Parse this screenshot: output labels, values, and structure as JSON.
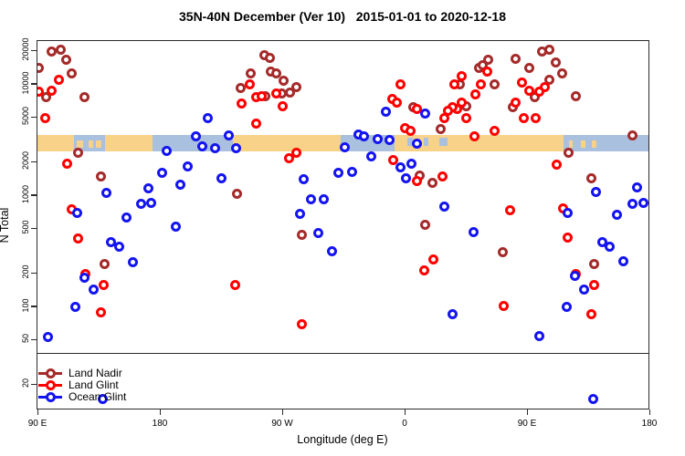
{
  "title": "35N-40N December (Ver 10)   2015-01-01 to 2020-12-18",
  "colors": {
    "land_nadir": "#A52A2A",
    "land_glint": "#FF0000",
    "ocean_glint": "#1414F0",
    "axis": "#2b2b2b",
    "band_ocean": "#A9C0DE",
    "band_land": "#F8D288"
  },
  "legend": {
    "items": [
      {
        "label": "Land Nadir",
        "series": "land_nadir"
      },
      {
        "label": "Land Glint",
        "series": "land_glint"
      },
      {
        "label": "Ocean Glint",
        "series": "ocean_glint"
      }
    ]
  },
  "axes": {
    "x": {
      "label": "Longitude (deg E)",
      "ticks": [
        {
          "lon": 90,
          "label": "90 E"
        },
        {
          "lon": 180,
          "label": "180"
        },
        {
          "lon": 270,
          "label": "90 W"
        },
        {
          "lon": 360,
          "label": "0"
        },
        {
          "lon": 450,
          "label": "90 E"
        },
        {
          "lon": 540,
          "label": "180"
        }
      ]
    },
    "y": {
      "label": "N Total",
      "scale": "log",
      "ticks": [
        20000,
        10000,
        5000,
        2000,
        1000,
        500,
        200,
        100,
        50,
        20
      ]
    }
  },
  "divider_line_value": 39,
  "map_band": {
    "value_center": 3000,
    "segments": [
      {
        "from": 89.3,
        "to": 117,
        "type": "land"
      },
      {
        "from": 117,
        "to": 140,
        "type": "ocean"
      },
      {
        "from": 140,
        "to": 175,
        "type": "land"
      },
      {
        "from": 175,
        "to": 234,
        "type": "ocean"
      },
      {
        "from": 234,
        "to": 313,
        "type": "land"
      },
      {
        "from": 313,
        "to": 353,
        "type": "ocean"
      },
      {
        "from": 353,
        "to": 477,
        "type": "land"
      },
      {
        "from": 477,
        "to": 541,
        "type": "ocean"
      }
    ],
    "islands": [
      {
        "from": 119,
        "to": 124
      },
      {
        "from": 128,
        "to": 131
      },
      {
        "from": 133,
        "to": 137
      },
      {
        "from": 481,
        "to": 484
      },
      {
        "from": 490,
        "to": 493
      },
      {
        "from": 498,
        "to": 501
      }
    ],
    "lakes": [
      {
        "from": 362,
        "to": 366
      },
      {
        "from": 374,
        "to": 378
      },
      {
        "from": 386,
        "to": 392
      }
    ]
  },
  "chart_data": {
    "type": "scatter",
    "title": "35N-40N December (Ver 10)   2015-01-01 to 2020-12-18",
    "xlabel": "Longitude (deg E)",
    "ylabel": "N Total",
    "x_range_deg_e": [
      89.3,
      541
    ],
    "y_range": [
      12,
      24600
    ],
    "y_scale": "log",
    "series": [
      {
        "name": "Land Nadir",
        "points": [
          [
            100.7,
            20000
          ],
          [
            107.5,
            20400
          ],
          [
            111.5,
            16600
          ],
          [
            115.5,
            12500
          ],
          [
            91.3,
            14200
          ],
          [
            96.7,
            7640
          ],
          [
            124.9,
            7640
          ],
          [
            239.8,
            9400
          ],
          [
            247.2,
            12700
          ],
          [
            257.2,
            18500
          ],
          [
            261.3,
            17200
          ],
          [
            262.0,
            13000
          ],
          [
            266.0,
            12500
          ],
          [
            271.3,
            10900
          ],
          [
            270.0,
            8240
          ],
          [
            257.9,
            7930
          ],
          [
            276.0,
            8550
          ],
          [
            280.7,
            9570
          ],
          [
            366.7,
            6210
          ],
          [
            386.9,
            4020
          ],
          [
            371.4,
            1510
          ],
          [
            380.8,
            1320
          ],
          [
            375.4,
            545
          ],
          [
            415.1,
            14000
          ],
          [
            417.8,
            14800
          ],
          [
            421.8,
            16600
          ],
          [
            401.0,
            10100
          ],
          [
            426.5,
            9950
          ],
          [
            439.9,
            6320
          ],
          [
            441.9,
            16900
          ],
          [
            452.0,
            14200
          ],
          [
            456.0,
            7640
          ],
          [
            466.8,
            11100
          ],
          [
            461.4,
            20000
          ],
          [
            466.8,
            20400
          ],
          [
            471.5,
            15900
          ],
          [
            476.2,
            12500
          ],
          [
            486.3,
            7930
          ],
          [
            480.9,
            2460
          ],
          [
            499.7,
            246
          ],
          [
            432.5,
            309
          ],
          [
            405.7,
            6440
          ],
          [
            139.7,
            246
          ],
          [
            137.0,
            1480
          ],
          [
            120.2,
            2460
          ],
          [
            284.8,
            442
          ],
          [
            237.1,
            1050
          ],
          [
            497.7,
            1450
          ],
          [
            527.9,
            3520
          ]
        ]
      },
      {
        "name": "Land Glint",
        "points": [
          [
            91.3,
            8710
          ],
          [
            100.7,
            8880
          ],
          [
            106.1,
            11100
          ],
          [
            96.0,
            5040
          ],
          [
            112.2,
            1930
          ],
          [
            246.5,
            9950
          ],
          [
            251.2,
            7780
          ],
          [
            255.2,
            7930
          ],
          [
            266.0,
            8390
          ],
          [
            270.7,
            6440
          ],
          [
            240.4,
            6820
          ],
          [
            251.2,
            4420
          ],
          [
            357.3,
            9950
          ],
          [
            351.2,
            7360
          ],
          [
            354.6,
            6950
          ],
          [
            369.4,
            5980
          ],
          [
            360.7,
            4090
          ],
          [
            364.7,
            3870
          ],
          [
            389.5,
            5040
          ],
          [
            421.1,
            13200
          ],
          [
            402.3,
            11800
          ],
          [
            396.9,
            9950
          ],
          [
            416.4,
            10100
          ],
          [
            446.6,
            10500
          ],
          [
            463.4,
            9570
          ],
          [
            459.4,
            8710
          ],
          [
            452.0,
            8880
          ],
          [
            412.4,
            8090
          ],
          [
            402.3,
            6950
          ],
          [
            398.9,
            5980
          ],
          [
            395.6,
            6210
          ],
          [
            392.2,
            5860
          ],
          [
            405.7,
            5040
          ],
          [
            441.9,
            6950
          ],
          [
            448.0,
            5040
          ],
          [
            456.7,
            4950
          ],
          [
            426.5,
            3870
          ],
          [
            411.7,
            3400
          ],
          [
            275.4,
            2160
          ],
          [
            280.7,
            2420
          ],
          [
            351.9,
            2080
          ],
          [
            369.4,
            1350
          ],
          [
            388.2,
            1480
          ],
          [
            115.5,
            750
          ],
          [
            120.2,
            410
          ],
          [
            125.6,
            200
          ],
          [
            139.0,
            157
          ],
          [
            137.0,
            89
          ],
          [
            235.8,
            157
          ],
          [
            284.8,
            70
          ],
          [
            374.8,
            212
          ],
          [
            381.5,
            270
          ],
          [
            472.1,
            1890
          ],
          [
            437.9,
            736
          ],
          [
            476.9,
            764
          ],
          [
            480.2,
            418
          ],
          [
            486.3,
            200
          ],
          [
            499.7,
            157
          ],
          [
            497.7,
            87
          ],
          [
            433.2,
            103
          ]
        ]
      },
      {
        "name": "Ocean Glint",
        "points": [
          [
            215.6,
            4950
          ],
          [
            206.9,
            3400
          ],
          [
            231.1,
            3520
          ],
          [
            211.6,
            2760
          ],
          [
            221.0,
            2660
          ],
          [
            236.4,
            2660
          ],
          [
            185.4,
            2510
          ],
          [
            346.6,
            5750
          ],
          [
            375.4,
            5440
          ],
          [
            326.4,
            3590
          ],
          [
            330.5,
            3400
          ],
          [
            340.5,
            3210
          ],
          [
            349.3,
            3150
          ],
          [
            369.4,
            2920
          ],
          [
            316.0,
            2710
          ],
          [
            182.0,
            1600
          ],
          [
            200.8,
            1820
          ],
          [
            171.9,
            1160
          ],
          [
            195.4,
            1250
          ],
          [
            166.6,
            855
          ],
          [
            173.9,
            871
          ],
          [
            155.8,
            644
          ],
          [
            225.7,
            1430
          ],
          [
            192.1,
            533
          ],
          [
            119.6,
            708
          ],
          [
            141.0,
            1070
          ],
          [
            144.4,
            387
          ],
          [
            150.4,
            352
          ],
          [
            160.5,
            251
          ],
          [
            131.6,
            143
          ],
          [
            118.2,
            101
          ],
          [
            98.0,
            54
          ],
          [
            124.9,
            185
          ],
          [
            138.4,
            15
          ],
          [
            286.1,
            1400
          ],
          [
            311.6,
            1600
          ],
          [
            321.7,
            1630
          ],
          [
            335.8,
            2240
          ],
          [
            291.5,
            940
          ],
          [
            300.9,
            940
          ],
          [
            283.4,
            695
          ],
          [
            296.8,
            459
          ],
          [
            306.9,
            315
          ],
          [
            357.3,
            1790
          ],
          [
            365.4,
            1960
          ],
          [
            361.3,
            1430
          ],
          [
            389.5,
            794
          ],
          [
            501.1,
            1090
          ],
          [
            531.3,
            1180
          ],
          [
            527.9,
            855
          ],
          [
            536.0,
            871
          ],
          [
            516.5,
            682
          ],
          [
            480.2,
            708
          ],
          [
            411.0,
            468
          ],
          [
            505.8,
            387
          ],
          [
            511.1,
            352
          ],
          [
            521.2,
            256
          ],
          [
            485.6,
            189
          ],
          [
            492.3,
            143
          ],
          [
            479.5,
            100
          ],
          [
            395.6,
            86
          ],
          [
            459.4,
            55
          ],
          [
            499.1,
            15
          ]
        ]
      }
    ]
  }
}
